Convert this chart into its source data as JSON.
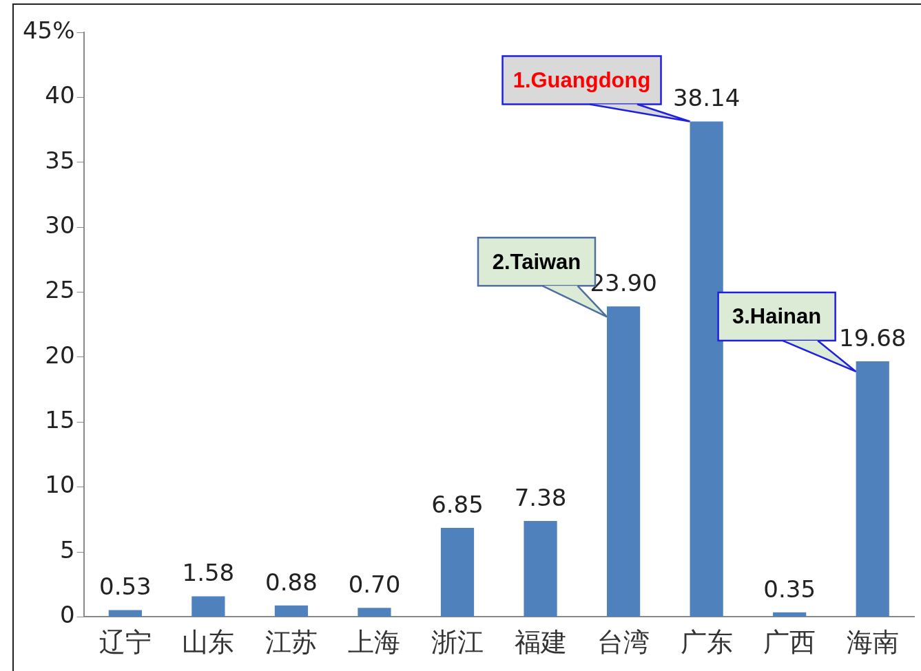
{
  "chart_data": {
    "type": "bar",
    "categories": [
      "辽宁",
      "山东",
      "江苏",
      "上海",
      "浙江",
      "福建",
      "台湾",
      "广东",
      "广西",
      "海南"
    ],
    "values": [
      0.53,
      1.58,
      0.88,
      0.7,
      6.85,
      7.38,
      23.9,
      38.14,
      0.35,
      19.68
    ],
    "value_labels": [
      "0.53",
      "1.58",
      "0.88",
      "0.70",
      "6.85",
      "7.38",
      "23.90",
      "38.14",
      "0.35",
      "19.68"
    ],
    "color": "#4f81bd",
    "ylim": [
      0,
      45
    ],
    "yticks": [
      0,
      5,
      10,
      15,
      20,
      25,
      30,
      35,
      40,
      {
        "value": 45,
        "label": "45%"
      }
    ],
    "grid": false,
    "legend": false,
    "annotations": [
      {
        "text": "1.Guangdong",
        "x": "广东",
        "y": 38.14
      },
      {
        "text": "2.Taiwan",
        "x": "台湾",
        "y": 23.9
      },
      {
        "text": "3.Hainan",
        "x": "海南",
        "y": 19.68
      }
    ]
  }
}
